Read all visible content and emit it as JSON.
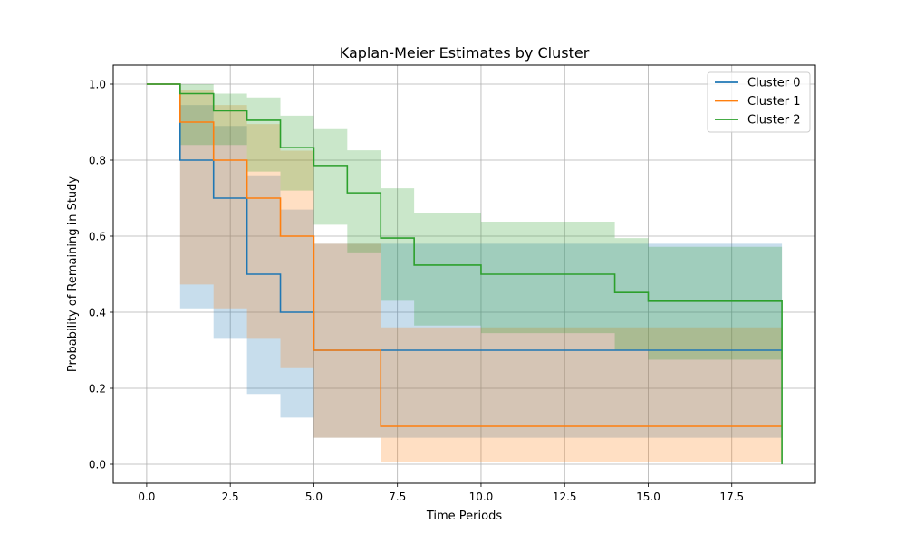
{
  "chart_data": {
    "type": "line",
    "step": "post",
    "title": "Kaplan-Meier Estimates by Cluster",
    "xlabel": "Time Periods",
    "ylabel": "Probability of Remaining in Study",
    "xlim": [
      -1.0,
      20.0
    ],
    "ylim": [
      -0.05,
      1.05
    ],
    "xticks": [
      0.0,
      2.5,
      5.0,
      7.5,
      10.0,
      12.5,
      15.0,
      17.5
    ],
    "xtick_labels": [
      "0.0",
      "2.5",
      "5.0",
      "7.5",
      "10.0",
      "12.5",
      "15.0",
      "17.5"
    ],
    "yticks": [
      0.0,
      0.2,
      0.4,
      0.6,
      0.8,
      1.0
    ],
    "ytick_labels": [
      "0.0",
      "0.2",
      "0.4",
      "0.6",
      "0.8",
      "1.0"
    ],
    "grid": true,
    "legend_position": "top-right",
    "series": [
      {
        "name": "Cluster 0",
        "color": "#1f77b4",
        "x": [
          0,
          1,
          2,
          3,
          4,
          5,
          7,
          19
        ],
        "y": [
          1.0,
          0.8,
          0.7,
          0.5,
          0.4,
          0.3,
          0.3,
          0.3
        ],
        "ci_lower": [
          1.0,
          0.41,
          0.33,
          0.185,
          0.123,
          0.07,
          0.07,
          0.07
        ],
        "ci_upper": [
          1.0,
          0.945,
          0.89,
          0.76,
          0.67,
          0.58,
          0.58,
          0.578
        ]
      },
      {
        "name": "Cluster 1",
        "color": "#ff7f0e",
        "x": [
          0,
          1,
          2,
          3,
          4,
          5,
          7,
          19
        ],
        "y": [
          1.0,
          0.9,
          0.8,
          0.7,
          0.6,
          0.3,
          0.1,
          0.1
        ],
        "ci_lower": [
          1.0,
          0.473,
          0.41,
          0.33,
          0.253,
          0.07,
          0.005,
          0.0
        ],
        "ci_upper": [
          1.0,
          0.985,
          0.945,
          0.895,
          0.825,
          0.58,
          0.36,
          0.36
        ]
      },
      {
        "name": "Cluster 2",
        "color": "#2ca02c",
        "x": [
          0,
          1,
          2,
          3,
          4,
          5,
          6,
          7,
          8,
          10,
          14,
          15,
          19
        ],
        "y": [
          1.0,
          0.975,
          0.93,
          0.905,
          0.833,
          0.786,
          0.714,
          0.595,
          0.524,
          0.5,
          0.452,
          0.429,
          0.0
        ],
        "ci_lower": [
          1.0,
          0.84,
          0.84,
          0.77,
          0.72,
          0.63,
          0.555,
          0.43,
          0.365,
          0.345,
          0.3,
          0.275,
          0.275
        ],
        "ci_upper": [
          1.0,
          1.0,
          0.975,
          0.965,
          0.917,
          0.884,
          0.826,
          0.726,
          0.662,
          0.638,
          0.595,
          0.572,
          0.572
        ]
      }
    ]
  }
}
